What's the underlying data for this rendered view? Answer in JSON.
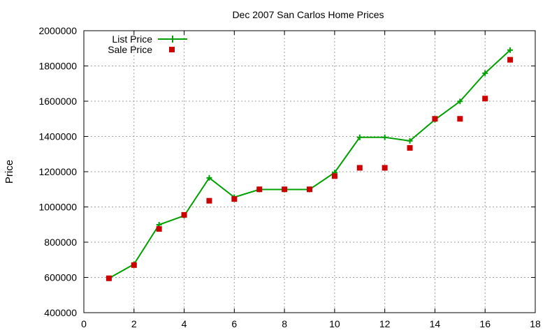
{
  "chart_data": {
    "type": "line",
    "title": "Dec 2007 San Carlos Home Prices",
    "xlabel": "",
    "ylabel": "Price",
    "xlim": [
      0,
      18
    ],
    "ylim": [
      400000,
      2000000
    ],
    "x_ticks": [
      0,
      2,
      4,
      6,
      8,
      10,
      12,
      14,
      16,
      18
    ],
    "y_ticks": [
      400000,
      600000,
      800000,
      1000000,
      1200000,
      1400000,
      1600000,
      1800000,
      2000000
    ],
    "grid": true,
    "legend_position": "top-left",
    "series": [
      {
        "name": "List Price",
        "style": "line+cross",
        "color": "#00a000",
        "x": [
          1,
          2,
          3,
          4,
          5,
          6,
          7,
          8,
          9,
          10,
          11,
          12,
          13,
          14,
          15,
          16,
          17
        ],
        "y": [
          595000,
          675000,
          899000,
          950000,
          1165000,
          1055000,
          1099000,
          1099000,
          1099000,
          1195000,
          1395000,
          1395000,
          1375000,
          1495000,
          1599000,
          1759000,
          1890000
        ]
      },
      {
        "name": "Sale Price",
        "style": "square",
        "color": "#cc0000",
        "x": [
          1,
          2,
          3,
          4,
          5,
          6,
          7,
          8,
          9,
          10,
          11,
          12,
          13,
          14,
          15,
          16,
          17
        ],
        "y": [
          595000,
          670000,
          875000,
          955000,
          1035000,
          1045000,
          1100000,
          1100000,
          1100000,
          1175000,
          1222000,
          1222000,
          1335000,
          1500000,
          1500000,
          1615000,
          1835000
        ]
      }
    ]
  }
}
